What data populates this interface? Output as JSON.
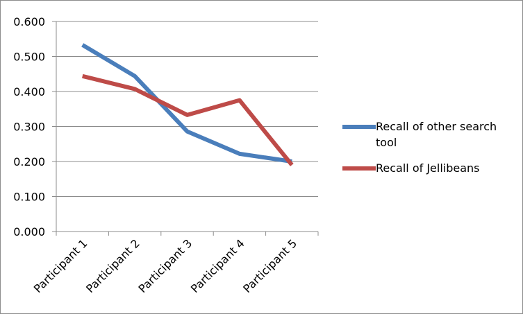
{
  "chart_data": {
    "type": "line",
    "categories": [
      "Participant 1",
      "Participant 2",
      "Participant 3",
      "Participant 4",
      "Participant 5"
    ],
    "series": [
      {
        "name": "Recall of other search tool",
        "color": "#4a7ebb",
        "values": [
          0.533,
          0.444,
          0.286,
          0.222,
          0.2
        ]
      },
      {
        "name": "Recall of Jellibeans",
        "color": "#be4b48",
        "values": [
          0.444,
          0.407,
          0.333,
          0.375,
          0.19
        ]
      }
    ],
    "yticks": [
      "0.000",
      "0.100",
      "0.200",
      "0.300",
      "0.400",
      "0.500",
      "0.600"
    ],
    "ylim": [
      0,
      0.6
    ],
    "grid": true,
    "legend_position": "right"
  }
}
